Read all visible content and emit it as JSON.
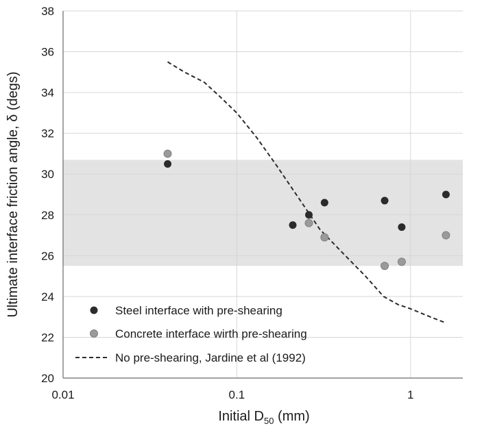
{
  "chart_data": {
    "type": "scatter",
    "xlabel": "Initial D",
    "xlabel_sub": "50",
    "xlabel_suffix": " (mm)",
    "ylabel": "Ultimate interface friction angle, δ (degs)",
    "xscale": "log",
    "xlim": [
      0.01,
      2
    ],
    "ylim": [
      20,
      38
    ],
    "x_ticks": [
      0.01,
      0.1,
      1
    ],
    "x_tick_labels": [
      "0.01",
      "0.1",
      "1"
    ],
    "y_ticks": [
      20,
      22,
      24,
      26,
      28,
      30,
      32,
      34,
      36,
      38
    ],
    "y_tick_labels": [
      "20",
      "22",
      "24",
      "26",
      "28",
      "30",
      "32",
      "34",
      "36",
      "38"
    ],
    "grid": true,
    "legend_position": "bottom-left",
    "shaded_band": {
      "y": [
        25.5,
        30.7
      ],
      "color": "#e3e3e3"
    },
    "series": [
      {
        "name": "Steel interface with pre-shearing",
        "type": "scatter",
        "color": "#2b2b2b",
        "points": [
          {
            "x": 0.04,
            "y": 30.5
          },
          {
            "x": 0.21,
            "y": 27.5
          },
          {
            "x": 0.26,
            "y": 28.0
          },
          {
            "x": 0.32,
            "y": 28.6
          },
          {
            "x": 0.71,
            "y": 28.7
          },
          {
            "x": 0.89,
            "y": 27.4
          },
          {
            "x": 1.6,
            "y": 29.0
          }
        ]
      },
      {
        "name": "Concrete interface wirth pre-shearing",
        "type": "scatter",
        "color": "#9a9a9a",
        "points": [
          {
            "x": 0.04,
            "y": 31.0
          },
          {
            "x": 0.26,
            "y": 27.6
          },
          {
            "x": 0.32,
            "y": 26.9
          },
          {
            "x": 0.71,
            "y": 25.5
          },
          {
            "x": 0.89,
            "y": 25.7
          },
          {
            "x": 1.6,
            "y": 27.0
          }
        ]
      },
      {
        "name": "No pre-shearing, Jardine et al (1992)",
        "type": "line",
        "style": "dashed",
        "color": "#2b2b2b",
        "points": [
          {
            "x": 0.04,
            "y": 35.5
          },
          {
            "x": 0.05,
            "y": 35.0
          },
          {
            "x": 0.065,
            "y": 34.5
          },
          {
            "x": 0.08,
            "y": 33.8
          },
          {
            "x": 0.1,
            "y": 33.0
          },
          {
            "x": 0.13,
            "y": 31.8
          },
          {
            "x": 0.17,
            "y": 30.4
          },
          {
            "x": 0.22,
            "y": 29.0
          },
          {
            "x": 0.3,
            "y": 27.3
          },
          {
            "x": 0.4,
            "y": 26.2
          },
          {
            "x": 0.55,
            "y": 25.0
          },
          {
            "x": 0.7,
            "y": 24.0
          },
          {
            "x": 0.85,
            "y": 23.6
          },
          {
            "x": 1.0,
            "y": 23.4
          },
          {
            "x": 1.3,
            "y": 23.0
          },
          {
            "x": 1.6,
            "y": 22.7
          }
        ]
      }
    ]
  }
}
